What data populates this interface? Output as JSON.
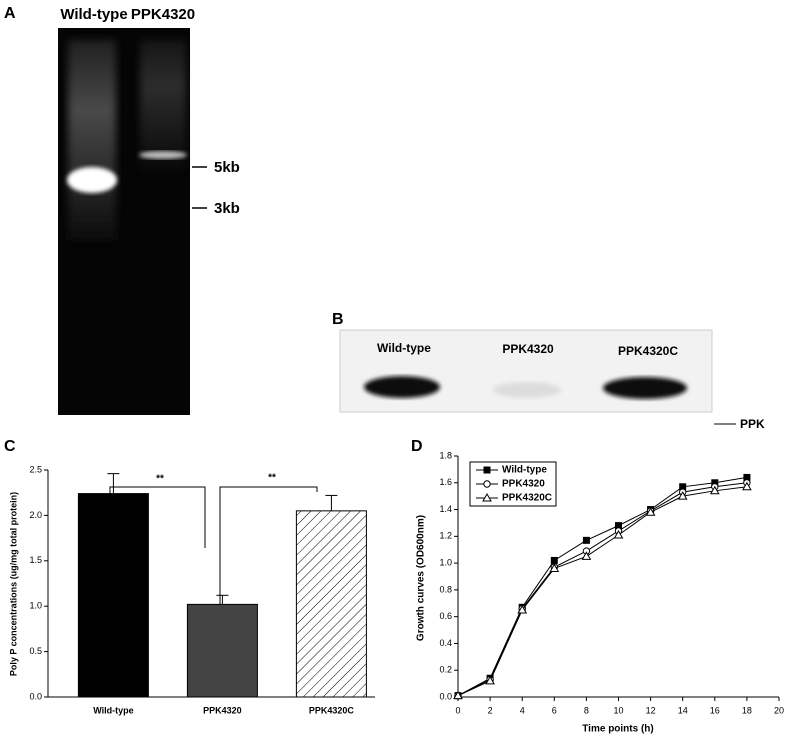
{
  "panels": {
    "a": {
      "label": "A",
      "lanes": [
        "Wild-type",
        "PPK4320"
      ],
      "markers": [
        "5kb",
        "3kb"
      ]
    },
    "b": {
      "label": "B",
      "lanes": [
        "Wild-type",
        "PPK4320",
        "PPK4320C"
      ],
      "band_label": "PPK"
    }
  },
  "chart_data": [
    {
      "type": "bar",
      "label": "C",
      "y_label": "Poly P concentrations (ug/mg total protein)",
      "categories": [
        "Wild-type",
        "PPK4320",
        "PPK4320C"
      ],
      "values": [
        2.24,
        1.02,
        2.05
      ],
      "errors": [
        0.22,
        0.1,
        0.17
      ],
      "colors": [
        "#000000",
        "#444444",
        "#ffffff"
      ],
      "hatch": [
        false,
        false,
        true
      ],
      "annotations": [
        "**",
        "**"
      ],
      "ylim": [
        0,
        2.5
      ],
      "yticks": [
        {
          "value": 0,
          "label": "0.0"
        },
        0.5,
        {
          "value": 1,
          "label": "1.0"
        },
        1.5,
        {
          "value": 2,
          "label": "2.0"
        },
        2.5
      ]
    },
    {
      "type": "line",
      "label": "D",
      "x_label": "Time points (h)",
      "y_label": "Growth curves (OD600nm)",
      "x": [
        0,
        2,
        4,
        6,
        8,
        10,
        12,
        14,
        16,
        18
      ],
      "series": [
        {
          "name": "Wild-type",
          "color": "#000000",
          "marker": "square",
          "values": [
            0.01,
            0.14,
            0.67,
            1.02,
            1.17,
            1.28,
            1.4,
            1.57,
            1.6,
            1.64
          ]
        },
        {
          "name": "PPK4320",
          "color": "#000000",
          "marker": "circle",
          "values": [
            0.01,
            0.13,
            0.66,
            0.97,
            1.09,
            1.24,
            1.39,
            1.53,
            1.57,
            1.6
          ]
        },
        {
          "name": "PPK4320C",
          "color": "#000000",
          "marker": "triangle",
          "values": [
            0.01,
            0.12,
            0.65,
            0.96,
            1.05,
            1.21,
            1.38,
            1.5,
            1.54,
            1.57
          ]
        }
      ],
      "legend": "upper left",
      "xlim": [
        0,
        20
      ],
      "xticks": [
        0,
        2,
        4,
        6,
        8,
        10,
        12,
        14,
        16,
        18,
        20
      ],
      "ylim": [
        0,
        1.8
      ],
      "yticks": [
        {
          "value": 0,
          "label": "0.0"
        },
        0.2,
        0.4,
        0.6,
        0.8,
        {
          "value": 1,
          "label": "1.0"
        },
        1.2,
        1.4,
        1.6,
        1.8
      ]
    }
  ]
}
